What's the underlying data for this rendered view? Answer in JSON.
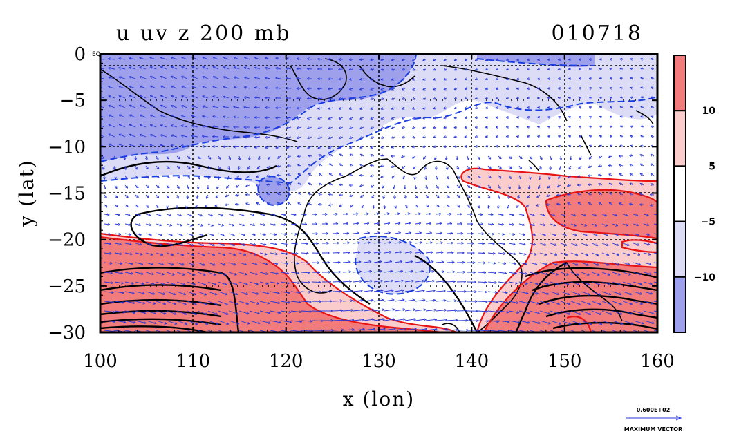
{
  "chart_data": {
    "type": "heatmap",
    "title_left": "u uv z 200 mb",
    "title_right": "010718",
    "xlabel": "x (lon)",
    "ylabel": "y (lat)",
    "xlim": [
      100,
      160
    ],
    "ylim": [
      -30,
      0
    ],
    "x_ticks": [
      100,
      110,
      120,
      130,
      140,
      150,
      160
    ],
    "y_ticks": [
      0,
      -5,
      -10,
      -15,
      -20,
      -25,
      -30
    ],
    "x_tick_labels": [
      "100",
      "110",
      "120",
      "130",
      "140",
      "150",
      "160"
    ],
    "y_tick_labels": [
      "0",
      "−5",
      "−10",
      "−15",
      "−20",
      "−25",
      "−30"
    ],
    "corner_label": "EQ",
    "grid": "dashed at every labeled tick",
    "colorbar": {
      "position": "right",
      "boundaries": [
        10,
        5,
        -5,
        -10
      ],
      "labels": [
        "10",
        "5",
        "−5",
        "−10"
      ],
      "colors": [
        "#f27c7c",
        "#fbcccc",
        "#ffffff",
        "#dcdcf6",
        "#9ea0ec"
      ]
    },
    "colors": {
      "strong_positive": "#f27c7c",
      "weak_positive": "#fbcccc",
      "weak_negative": "#dcdcf6",
      "strong_negative": "#9ea0ec",
      "positive_contour": "#e81414",
      "negative_contour": "#1a3fe0",
      "height_contour": "#000000",
      "vector": "#2436d8"
    },
    "regions": [
      {
        "band": "strong_negative",
        "area": "north-west (100–118E, 0 to −14)"
      },
      {
        "band": "weak_negative",
        "area": "northern belt (100–160E, 0 to −15)"
      },
      {
        "band": "weak_positive",
        "area": "Coral Sea / eastern Australia (140–160E, −13 to −30)"
      },
      {
        "band": "strong_positive",
        "area": "subtropical jet (100–160E, −20 to −30)"
      }
    ],
    "vector_reference": {
      "label_top": "0.600E+02",
      "label_bottom": "MAXIMUM VECTOR"
    }
  }
}
